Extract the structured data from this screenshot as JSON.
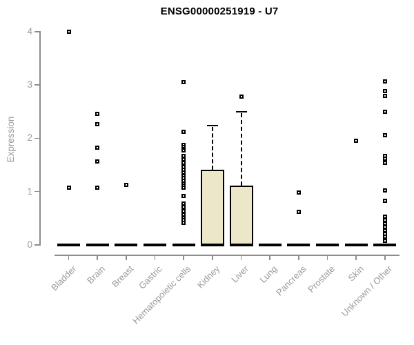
{
  "chart_data": {
    "type": "boxplot",
    "title": "ENSG00000251919 - U7",
    "ylabel": "Expression",
    "xlabel": "",
    "ylim": [
      0,
      4
    ],
    "yticks": [
      0,
      1,
      2,
      3,
      4
    ],
    "grid": false,
    "legend": "none",
    "colors": {
      "box_fill": "#ede7ca",
      "box_border": "#000000",
      "axis": "#8c8c8c",
      "tick_label": "#9a9a9a",
      "title": "#000000",
      "outlier_marker": "#000000"
    },
    "categories": [
      "Bladder",
      "Brain",
      "Breast",
      "Gastric",
      "Hematopoietic cells",
      "Kidney",
      "Liver",
      "Lung",
      "Pancreas",
      "Prostate",
      "Skin",
      "Unknown / Other"
    ],
    "series": [
      {
        "category": "Bladder",
        "q1": 0,
        "median": 0,
        "q3": 0,
        "whisker_low": 0,
        "whisker_high": 0,
        "outliers": [
          4.0,
          1.07
        ]
      },
      {
        "category": "Brain",
        "q1": 0,
        "median": 0,
        "q3": 0,
        "whisker_low": 0,
        "whisker_high": 0,
        "outliers": [
          2.46,
          2.27,
          1.83,
          1.56,
          1.08
        ]
      },
      {
        "category": "Breast",
        "q1": 0,
        "median": 0,
        "q3": 0,
        "whisker_low": 0,
        "whisker_high": 0,
        "outliers": [
          1.12
        ]
      },
      {
        "category": "Gastric",
        "q1": 0,
        "median": 0,
        "q3": 0,
        "whisker_low": 0,
        "whisker_high": 0,
        "outliers": []
      },
      {
        "category": "Hematopoietic cells",
        "q1": 0,
        "median": 0,
        "q3": 0,
        "whisker_low": 0,
        "whisker_high": 0,
        "outliers": [
          3.05,
          2.12,
          1.88,
          1.84,
          1.8,
          1.77,
          1.67,
          1.6,
          1.54,
          1.46,
          1.41,
          1.36,
          1.3,
          1.25,
          1.2,
          1.15,
          1.11,
          1.07,
          0.92,
          0.78,
          0.71,
          0.63,
          0.57,
          0.51,
          0.46,
          0.41
        ]
      },
      {
        "category": "Kidney",
        "q1": 0,
        "median": 0,
        "q3": 1.41,
        "whisker_low": 0,
        "whisker_high": 2.24,
        "outliers": []
      },
      {
        "category": "Liver",
        "q1": 0,
        "median": 0,
        "q3": 1.11,
        "whisker_low": 0,
        "whisker_high": 2.5,
        "outliers": [
          2.78
        ]
      },
      {
        "category": "Lung",
        "q1": 0,
        "median": 0,
        "q3": 0,
        "whisker_low": 0,
        "whisker_high": 0,
        "outliers": []
      },
      {
        "category": "Pancreas",
        "q1": 0,
        "median": 0,
        "q3": 0,
        "whisker_low": 0,
        "whisker_high": 0,
        "outliers": [
          0.98,
          0.62
        ]
      },
      {
        "category": "Prostate",
        "q1": 0,
        "median": 0,
        "q3": 0,
        "whisker_low": 0,
        "whisker_high": 0,
        "outliers": []
      },
      {
        "category": "Skin",
        "q1": 0,
        "median": 0,
        "q3": 0,
        "whisker_low": 0,
        "whisker_high": 0,
        "outliers": [
          1.95
        ]
      },
      {
        "category": "Unknown / Other",
        "q1": 0,
        "median": 0,
        "q3": 0,
        "whisker_low": 0,
        "whisker_high": 0,
        "outliers": [
          3.07,
          2.88,
          2.79,
          2.5,
          2.06,
          1.67,
          1.62,
          1.54,
          1.02,
          0.83,
          0.53,
          0.47,
          0.4,
          0.34,
          0.27,
          0.21,
          0.16,
          0.08
        ]
      }
    ]
  }
}
